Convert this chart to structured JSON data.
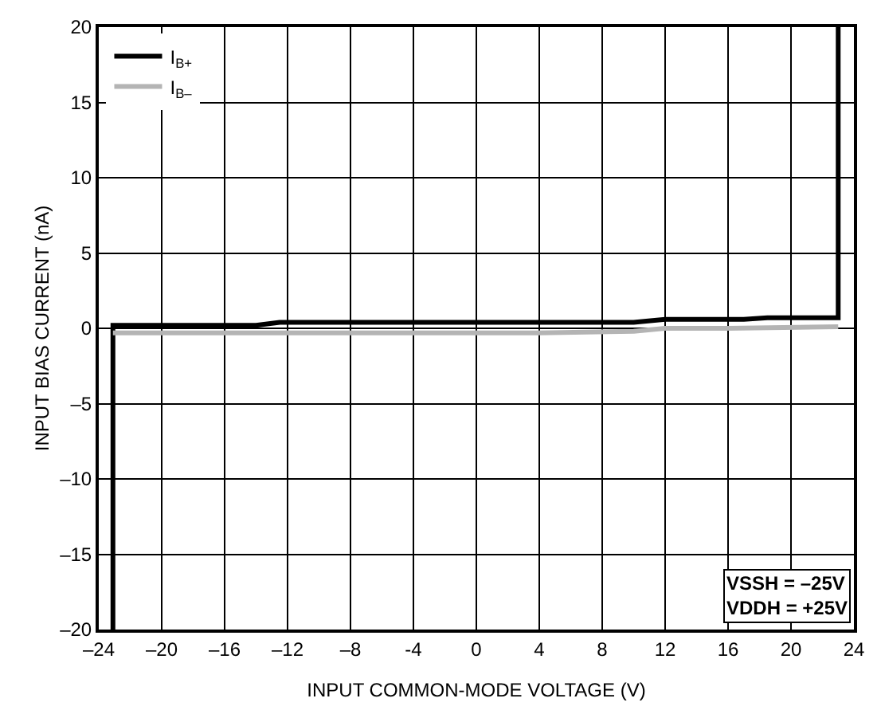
{
  "chart_data": {
    "type": "line",
    "xlabel": "INPUT COMMON-MODE VOLTAGE (V)",
    "ylabel": "INPUT BIAS CURRENT (nA)",
    "series": [
      {
        "name": "I$_{B+}$",
        "color": "#000000",
        "x": [
          -23.1,
          -23.1,
          -14,
          -12.5,
          10,
          12,
          17,
          18.5,
          23,
          23
        ],
        "values": [
          -20,
          0.2,
          0.2,
          0.4,
          0.4,
          0.6,
          0.6,
          0.7,
          0.7,
          20
        ]
      },
      {
        "name": "I$_{B–}$",
        "color": "#b4b4b4",
        "x": [
          -23.1,
          4,
          10,
          12,
          16,
          23
        ],
        "values": [
          -0.3,
          -0.3,
          -0.2,
          0,
          0,
          0.1
        ]
      }
    ],
    "xlim": [
      -24,
      24
    ],
    "xticks": [
      {
        "value": -24,
        "label": "–24"
      },
      {
        "value": -20,
        "label": "–20"
      },
      {
        "value": -16,
        "label": "–16"
      },
      {
        "value": -12,
        "label": "–12"
      },
      {
        "value": -8,
        "label": "–8"
      },
      -4,
      0,
      4,
      8,
      12,
      16,
      20,
      24
    ],
    "ylim": [
      -20,
      20
    ],
    "yticks": [
      {
        "value": -20,
        "label": "–20"
      },
      {
        "value": -15,
        "label": "–15"
      },
      {
        "value": -10,
        "label": "–10"
      },
      {
        "value": -5,
        "label": "–5"
      },
      0,
      5,
      10,
      15,
      20
    ],
    "grid": true,
    "legend": "top left",
    "line_style": "solid",
    "marker": "none",
    "annotations": [
      "VSSH = –25V\nVDDH = +25V"
    ]
  }
}
